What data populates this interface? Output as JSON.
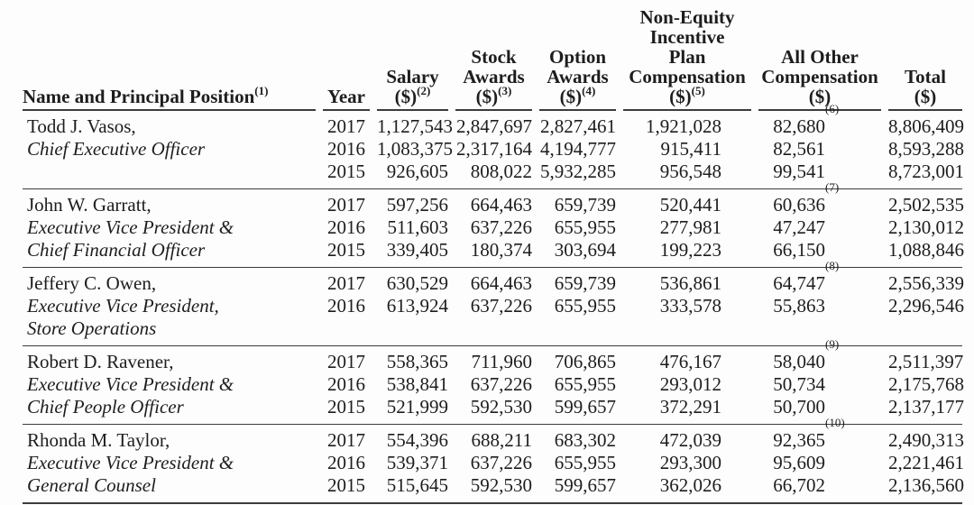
{
  "table": {
    "columns": [
      {
        "id": "name",
        "header_lines": [
          {
            "text": "Name and Principal Position",
            "sup": "(1)"
          }
        ]
      },
      {
        "id": "year",
        "header_lines": [
          {
            "text": "Year"
          }
        ]
      },
      {
        "id": "salary",
        "header_lines": [
          {
            "text": "Salary"
          },
          {
            "text": "($)",
            "sup": "(2)"
          }
        ]
      },
      {
        "id": "stock_awards",
        "header_lines": [
          {
            "text": "Stock"
          },
          {
            "text": "Awards"
          },
          {
            "text": "($)",
            "sup": "(3)"
          }
        ]
      },
      {
        "id": "option_awards",
        "header_lines": [
          {
            "text": "Option"
          },
          {
            "text": "Awards"
          },
          {
            "text": "($)",
            "sup": "(4)"
          }
        ]
      },
      {
        "id": "non_equity",
        "header_lines": [
          {
            "text": "Non-Equity"
          },
          {
            "text": "Incentive"
          },
          {
            "text": "Plan"
          },
          {
            "text": "Compensation"
          },
          {
            "text": "($)",
            "sup": "(5)"
          }
        ]
      },
      {
        "id": "all_other",
        "header_lines": [
          {
            "text": "All Other"
          },
          {
            "text": "Compensation"
          },
          {
            "text": "($)"
          }
        ]
      },
      {
        "id": "total",
        "header_lines": [
          {
            "text": "Total"
          },
          {
            "text": "($)"
          }
        ]
      }
    ],
    "groups": [
      {
        "name_lines": [
          "Todd J. Vasos,",
          "Chief Executive Officer"
        ],
        "rows": [
          {
            "year": "2017",
            "salary": "1,127,543",
            "stock_awards": "2,847,697",
            "option_awards": "2,827,461",
            "non_equity": "1,921,028",
            "all_other": "82,680",
            "all_other_sup": "(6)",
            "total": "8,806,409"
          },
          {
            "year": "2016",
            "salary": "1,083,375",
            "stock_awards": "2,317,164",
            "option_awards": "4,194,777",
            "non_equity": "915,411",
            "all_other": "82,561",
            "all_other_sup": "",
            "total": "8,593,288"
          },
          {
            "year": "2015",
            "salary": "926,605",
            "stock_awards": "808,022",
            "option_awards": "5,932,285",
            "non_equity": "956,548",
            "all_other": "99,541",
            "all_other_sup": "",
            "total": "8,723,001"
          }
        ]
      },
      {
        "name_lines": [
          "John W. Garratt,",
          "Executive Vice President &",
          "Chief Financial Officer"
        ],
        "rows": [
          {
            "year": "2017",
            "salary": "597,256",
            "stock_awards": "664,463",
            "option_awards": "659,739",
            "non_equity": "520,441",
            "all_other": "60,636",
            "all_other_sup": "(7)",
            "total": "2,502,535"
          },
          {
            "year": "2016",
            "salary": "511,603",
            "stock_awards": "637,226",
            "option_awards": "655,955",
            "non_equity": "277,981",
            "all_other": "47,247",
            "all_other_sup": "",
            "total": "2,130,012"
          },
          {
            "year": "2015",
            "salary": "339,405",
            "stock_awards": "180,374",
            "option_awards": "303,694",
            "non_equity": "199,223",
            "all_other": "66,150",
            "all_other_sup": "",
            "total": "1,088,846"
          }
        ]
      },
      {
        "name_lines": [
          "Jeffery C. Owen,",
          "Executive Vice President,",
          "Store Operations"
        ],
        "rows": [
          {
            "year": "2017",
            "salary": "630,529",
            "stock_awards": "664,463",
            "option_awards": "659,739",
            "non_equity": "536,861",
            "all_other": "64,747",
            "all_other_sup": "(8)",
            "total": "2,556,339"
          },
          {
            "year": "2016",
            "salary": "613,924",
            "stock_awards": "637,226",
            "option_awards": "655,955",
            "non_equity": "333,578",
            "all_other": "55,863",
            "all_other_sup": "",
            "total": "2,296,546"
          }
        ]
      },
      {
        "name_lines": [
          "Robert D. Ravener,",
          "Executive Vice President &",
          "Chief People Officer"
        ],
        "rows": [
          {
            "year": "2017",
            "salary": "558,365",
            "stock_awards": "711,960",
            "option_awards": "706,865",
            "non_equity": "476,167",
            "all_other": "58,040",
            "all_other_sup": "(9)",
            "total": "2,511,397"
          },
          {
            "year": "2016",
            "salary": "538,841",
            "stock_awards": "637,226",
            "option_awards": "655,955",
            "non_equity": "293,012",
            "all_other": "50,734",
            "all_other_sup": "",
            "total": "2,175,768"
          },
          {
            "year": "2015",
            "salary": "521,999",
            "stock_awards": "592,530",
            "option_awards": "599,657",
            "non_equity": "372,291",
            "all_other": "50,700",
            "all_other_sup": "",
            "total": "2,137,177"
          }
        ]
      },
      {
        "name_lines": [
          "Rhonda M. Taylor,",
          "Executive Vice President &",
          "General Counsel"
        ],
        "rows": [
          {
            "year": "2017",
            "salary": "554,396",
            "stock_awards": "688,211",
            "option_awards": "683,302",
            "non_equity": "472,039",
            "all_other": "92,365",
            "all_other_sup": "(10)",
            "total": "2,490,313"
          },
          {
            "year": "2016",
            "salary": "539,371",
            "stock_awards": "637,226",
            "option_awards": "655,955",
            "non_equity": "293,300",
            "all_other": "95,609",
            "all_other_sup": "",
            "total": "2,221,461"
          },
          {
            "year": "2015",
            "salary": "515,645",
            "stock_awards": "592,530",
            "option_awards": "599,657",
            "non_equity": "362,026",
            "all_other": "66,702",
            "all_other_sup": "",
            "total": "2,136,560"
          }
        ]
      }
    ]
  }
}
